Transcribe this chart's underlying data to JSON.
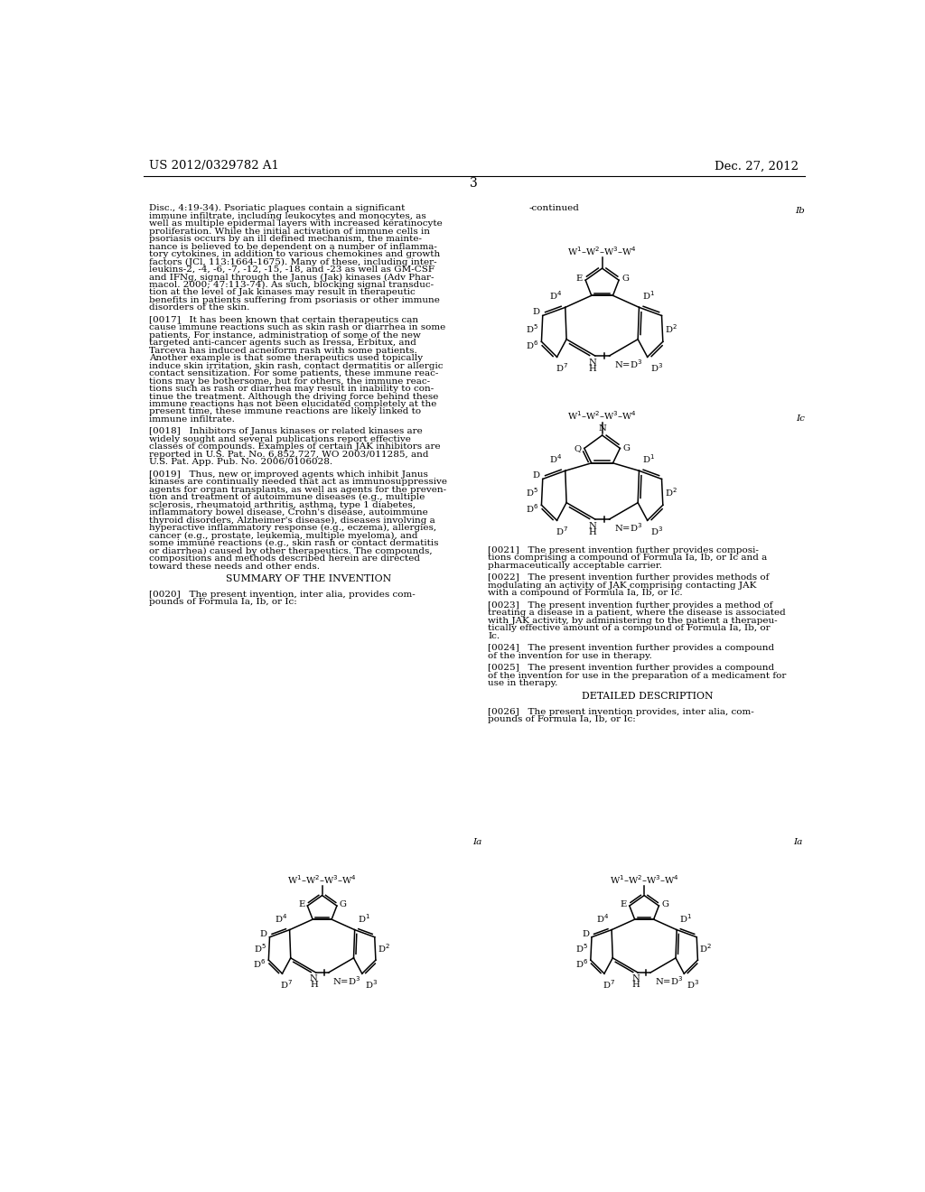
{
  "bg_color": "#ffffff",
  "text_color": "#000000",
  "left_header": "US 2012/0329782 A1",
  "right_header": "Dec. 27, 2012",
  "page_number": "3",
  "body_fs": 7.5,
  "header_fs": 9.5,
  "chem_fs": 7.2,
  "left_col_lines": [
    "Disc., 4:19-34). Psoriatic plaques contain a significant",
    "immune infiltrate, including leukocytes and monocytes, as",
    "well as multiple epidermal layers with increased keratinocyte",
    "proliferation. While the initial activation of immune cells in",
    "psoriasis occurs by an ill defined mechanism, the mainte-",
    "nance is believed to be dependent on a number of inflamma-",
    "tory cytokines, in addition to various chemokines and growth",
    "factors (JCl, 113:1664-1675). Many of these, including inter-",
    "leukins-2, -4, -6, -7, -12, -15, -18, and -23 as well as GM-CSF",
    "and IFNg, signal through the Janus (Jak) kinases (Adv Phar-",
    "macol. 2000; 47:113-74). As such, blocking signal transduc-",
    "tion at the level of Jak kinases may result in therapeutic",
    "benefits in patients suffering from psoriasis or other immune",
    "disorders of the skin.",
    "",
    "[0017]   It has been known that certain therapeutics can",
    "cause immune reactions such as skin rash or diarrhea in some",
    "patients. For instance, administration of some of the new",
    "targeted anti-cancer agents such as Iressa, Erbitux, and",
    "Tarceva has induced acneiform rash with some patients.",
    "Another example is that some therapeutics used topically",
    "induce skin irritation, skin rash, contact dermatitis or allergic",
    "contact sensitization. For some patients, these immune reac-",
    "tions may be bothersome, but for others, the immune reac-",
    "tions such as rash or diarrhea may result in inability to con-",
    "tinue the treatment. Although the driving force behind these",
    "immune reactions has not been elucidated completely at the",
    "present time, these immune reactions are likely linked to",
    "immune infiltrate.",
    "",
    "[0018]   Inhibitors of Janus kinases or related kinases are",
    "widely sought and several publications report effective",
    "classes of compounds. Examples of certain JAK inhibitors are",
    "reported in U.S. Pat. No. 6,852,727, WO 2003/011285, and",
    "U.S. Pat. App. Pub. No. 2006/0106028.",
    "",
    "[0019]   Thus, new or improved agents which inhibit Janus",
    "kinases are continually needed that act as immunosuppressive",
    "agents for organ transplants, as well as agents for the preven-",
    "tion and treatment of autoimmune diseases (e.g., multiple",
    "sclerosis, rheumatoid arthritis, asthma, type 1 diabetes,",
    "inflammatory bowel disease, Crohn's disease, autoimmune",
    "thyroid disorders, Alzheimer's disease), diseases involving a",
    "hyperactive inflammatory response (e.g., eczema), allergies,",
    "cancer (e.g., prostate, leukemia, multiple myeloma), and",
    "some immune reactions (e.g., skin rash or contact dermatitis",
    "or diarrhea) caused by other therapeutics. The compounds,",
    "compositions and methods described herein are directed",
    "toward these needs and other ends.",
    "",
    "~CENTER~SUMMARY OF THE INVENTION",
    "",
    "[0020]   The present invention, inter alia, provides com-",
    "pounds of Formula Ia, Ib, or Ic:"
  ],
  "right_col_lines_top": [
    "[0021]   The present invention further provides composi-",
    "tions comprising a compound of Formula Ia, Ib, or Ic and a",
    "pharmaceutically acceptable carrier.",
    "",
    "[0022]   The present invention further provides methods of",
    "modulating an activity of JAK comprising contacting JAK",
    "with a compound of Formula Ia, Ib, or Ic.",
    "",
    "[0023]   The present invention further provides a method of",
    "treating a disease in a patient, where the disease is associated",
    "with JAK activity, by administering to the patient a therapeu-",
    "tically effective amount of a compound of Formula Ia, Ib, or",
    "Ic.",
    "",
    "[0024]   The present invention further provides a compound",
    "of the invention for use in therapy.",
    "",
    "[0025]   The present invention further provides a compound",
    "of the invention for use in the preparation of a medicament for",
    "use in therapy.",
    "",
    "~CENTER~DETAILED DESCRIPTION",
    "",
    "[0026]   The present invention provides, inter alia, com-",
    "pounds of Formula Ia, Ib, or Ic:"
  ]
}
